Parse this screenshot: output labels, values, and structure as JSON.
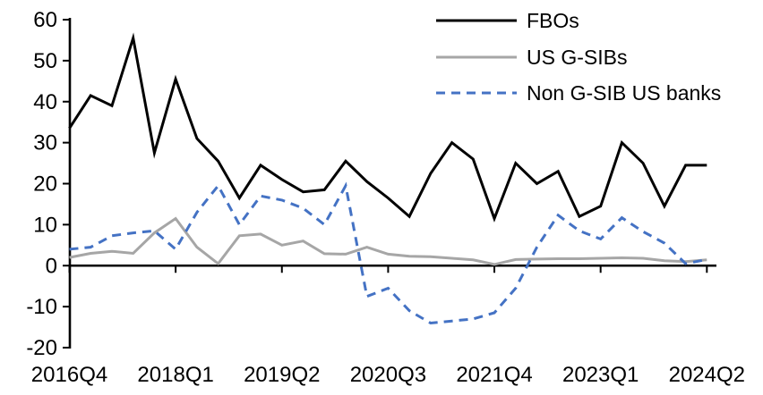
{
  "chart_data": {
    "type": "line",
    "title": "",
    "xlabel": "",
    "ylabel": "",
    "grid": false,
    "legend_position": "top-right",
    "axis_color": "#000000",
    "background_color": "#ffffff",
    "ylim": [
      -20,
      60
    ],
    "y_ticks": [
      60,
      50,
      40,
      30,
      20,
      10,
      0,
      -10,
      -20
    ],
    "x_categories": [
      "2016Q4",
      "2017Q1",
      "2017Q2",
      "2017Q3",
      "2017Q4",
      "2018Q1",
      "2018Q2",
      "2018Q3",
      "2018Q4",
      "2019Q1",
      "2019Q2",
      "2019Q3",
      "2019Q4",
      "2020Q1",
      "2020Q2",
      "2020Q3",
      "2020Q4",
      "2021Q1",
      "2021Q2",
      "2021Q3",
      "2021Q4",
      "2022Q1",
      "2022Q2",
      "2022Q3",
      "2022Q4",
      "2023Q1",
      "2023Q2",
      "2023Q3",
      "2023Q4",
      "2024Q1",
      "2024Q2"
    ],
    "x_tick_positions": [
      0,
      5,
      10,
      15,
      20,
      25,
      30
    ],
    "x_tick_labels": [
      "2016Q4",
      "2018Q1",
      "2019Q2",
      "2020Q3",
      "2021Q4",
      "2023Q1",
      "2024Q2"
    ],
    "series": [
      {
        "name": "FBOs",
        "color": "#000000",
        "style": "solid",
        "values": [
          33.5,
          41.5,
          39,
          55.5,
          27.5,
          45.5,
          31,
          25.5,
          16.5,
          24.5,
          21,
          18,
          18.5,
          25.5,
          20.5,
          16.5,
          12,
          22.5,
          30,
          26,
          11.5,
          25,
          20,
          23,
          12,
          14.5,
          30,
          25,
          14.5,
          24.5,
          24.5
        ]
      },
      {
        "name": "US G-SIBs",
        "color": "#a6a6a6",
        "style": "solid",
        "values": [
          2,
          3,
          3.5,
          3,
          8,
          11.5,
          4.5,
          0.5,
          7.3,
          7.7,
          5,
          6,
          2.9,
          2.8,
          4.5,
          2.8,
          2.3,
          2.2,
          1.8,
          1.4,
          0.3,
          1.5,
          1.6,
          1.7,
          1.7,
          1.8,
          1.9,
          1.8,
          1.2,
          1,
          1.4
        ]
      },
      {
        "name": "Non G-SIB US banks",
        "color": "#4472c4",
        "style": "dashed",
        "values": [
          4,
          4.5,
          7.3,
          8,
          8.5,
          4,
          13,
          19.5,
          10,
          17,
          16,
          14,
          10,
          19.5,
          -7.5,
          -5.5,
          -11,
          -14,
          -13.5,
          -13,
          -11.5,
          -5.5,
          4.5,
          12.3,
          8.5,
          6.5,
          11.7,
          8.3,
          5.5,
          0.5,
          1.5
        ]
      }
    ]
  }
}
